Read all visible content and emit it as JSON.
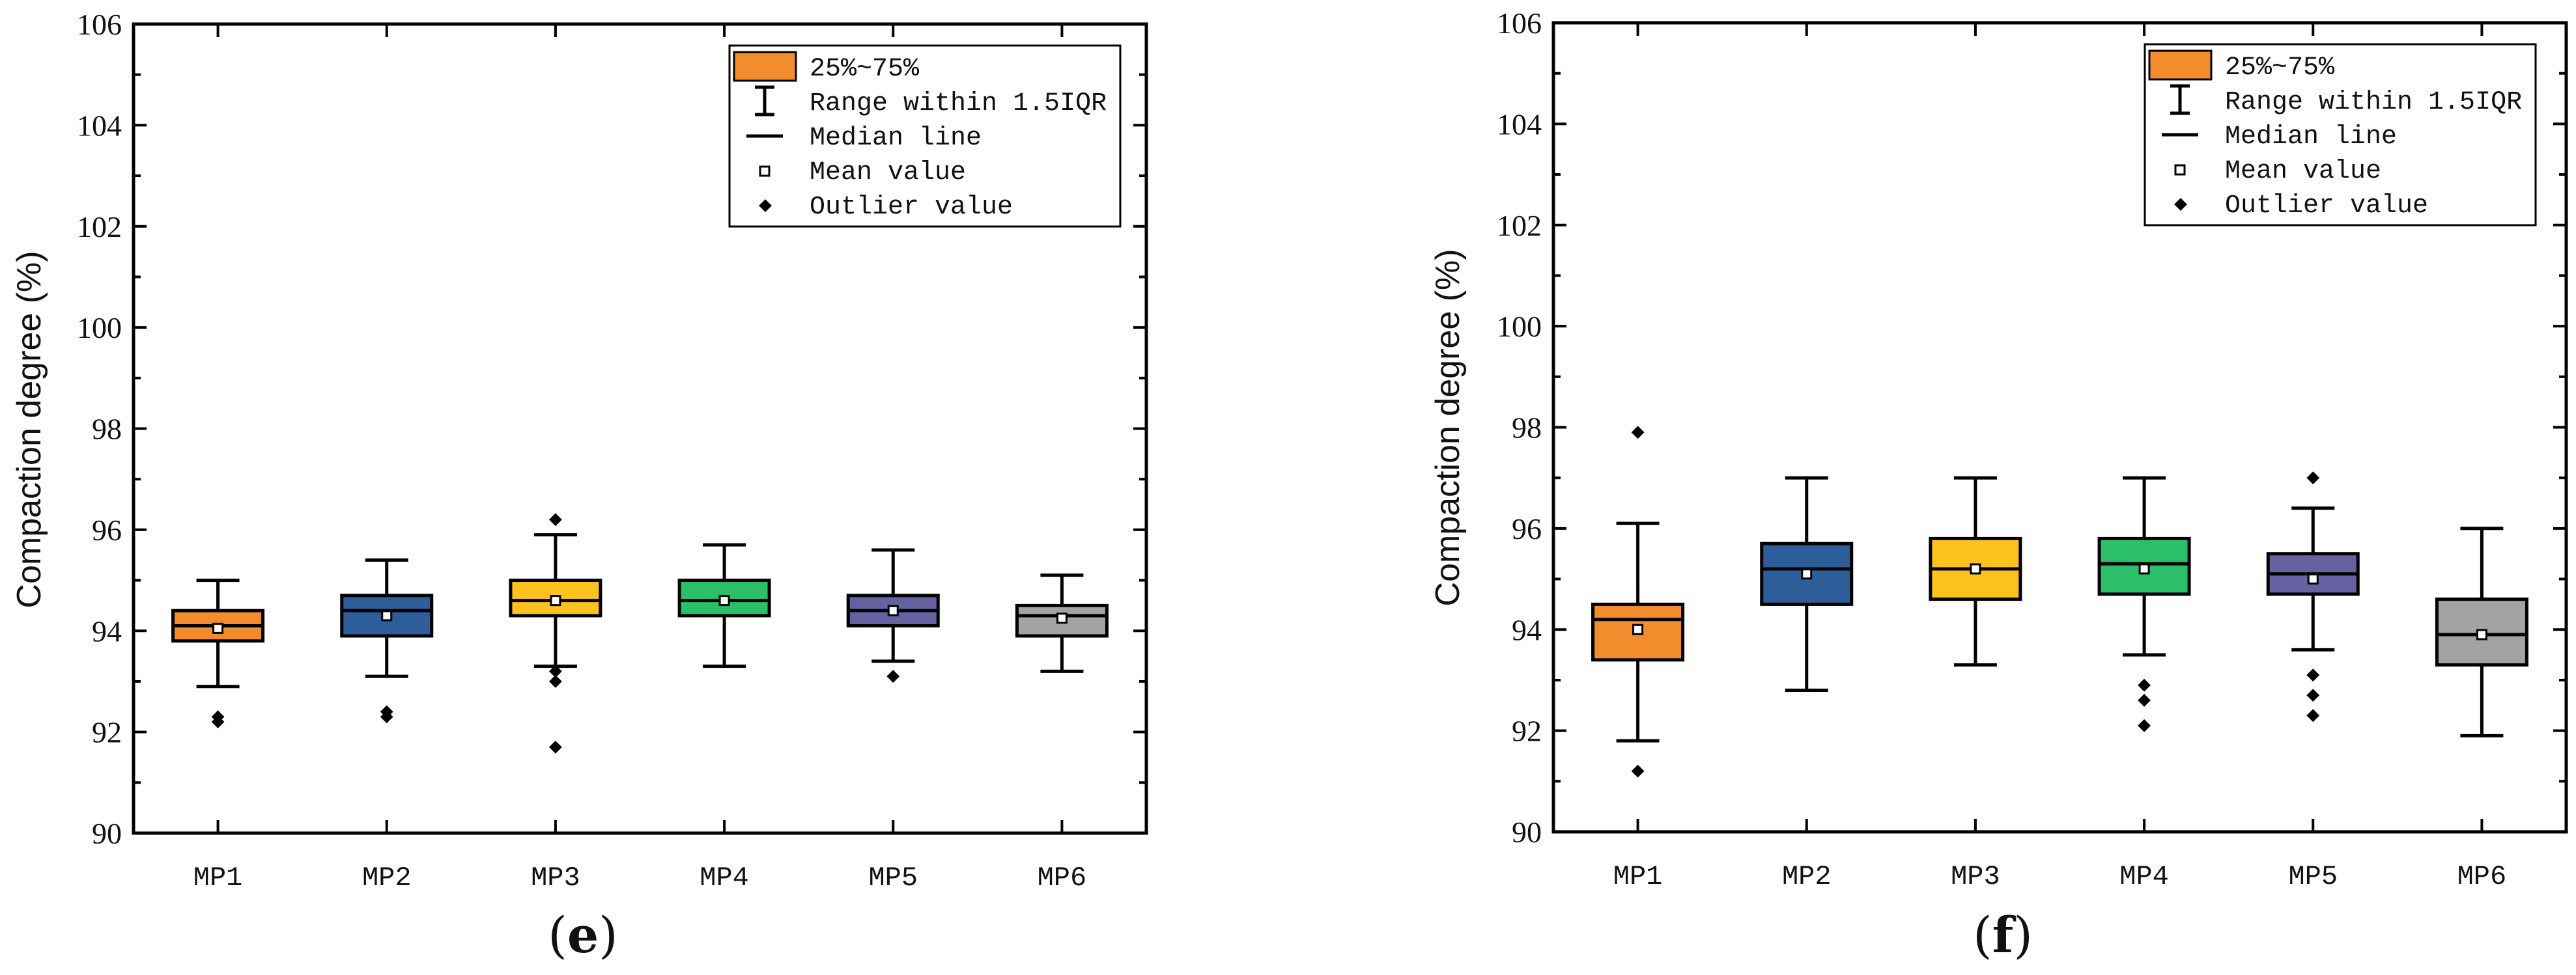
{
  "chart_data": [
    {
      "type": "box",
      "panel": "e",
      "panel_label": "e",
      "ylabel": "Compaction degree (%)",
      "xlabel": "",
      "ylim": [
        90,
        106
      ],
      "yticks": [
        90,
        92,
        94,
        96,
        98,
        100,
        102,
        104,
        106
      ],
      "grid": false,
      "legend_position": "top-right",
      "categories": [
        "MP1",
        "MP2",
        "MP3",
        "MP4",
        "MP5",
        "MP6"
      ],
      "boxes": [
        {
          "name": "MP1",
          "whisker_low": 92.9,
          "q1": 93.8,
          "median": 94.1,
          "mean": 94.05,
          "q3": 94.4,
          "whisker_high": 95.0,
          "color": "#F28C2D",
          "outliers": [
            92.2,
            92.3
          ]
        },
        {
          "name": "MP2",
          "whisker_low": 93.1,
          "q1": 93.9,
          "median": 94.4,
          "mean": 94.3,
          "q3": 94.7,
          "whisker_high": 95.4,
          "color": "#2E5E9A",
          "outliers": [
            92.3,
            92.4
          ]
        },
        {
          "name": "MP3",
          "whisker_low": 93.3,
          "q1": 94.3,
          "median": 94.6,
          "mean": 94.6,
          "q3": 95.0,
          "whisker_high": 95.9,
          "color": "#FDC21E",
          "outliers": [
            96.2,
            93.0,
            93.2,
            91.7
          ]
        },
        {
          "name": "MP4",
          "whisker_low": 93.3,
          "q1": 94.3,
          "median": 94.6,
          "mean": 94.6,
          "q3": 95.0,
          "whisker_high": 95.7,
          "color": "#2CBF6A",
          "outliers": []
        },
        {
          "name": "MP5",
          "whisker_low": 93.4,
          "q1": 94.1,
          "median": 94.4,
          "mean": 94.4,
          "q3": 94.7,
          "whisker_high": 95.6,
          "color": "#6661A0",
          "outliers": [
            93.1
          ]
        },
        {
          "name": "MP6",
          "whisker_low": 93.2,
          "q1": 93.9,
          "median": 94.3,
          "mean": 94.25,
          "q3": 94.5,
          "whisker_high": 95.1,
          "color": "#A3A3A3",
          "outliers": []
        }
      ]
    },
    {
      "type": "box",
      "panel": "f",
      "panel_label": "f",
      "ylabel": "Compaction degree (%)",
      "xlabel": "",
      "ylim": [
        90,
        106
      ],
      "yticks": [
        90,
        92,
        94,
        96,
        98,
        100,
        102,
        104,
        106
      ],
      "grid": false,
      "legend_position": "top-right",
      "categories": [
        "MP1",
        "MP2",
        "MP3",
        "MP4",
        "MP5",
        "MP6"
      ],
      "boxes": [
        {
          "name": "MP1",
          "whisker_low": 91.8,
          "q1": 93.4,
          "median": 94.2,
          "mean": 94.0,
          "q3": 94.5,
          "whisker_high": 96.1,
          "color": "#F28C2D",
          "outliers": [
            97.9,
            91.2
          ]
        },
        {
          "name": "MP2",
          "whisker_low": 92.8,
          "q1": 94.5,
          "median": 95.2,
          "mean": 95.1,
          "q3": 95.7,
          "whisker_high": 97.0,
          "color": "#2E5E9A",
          "outliers": []
        },
        {
          "name": "MP3",
          "whisker_low": 93.3,
          "q1": 94.6,
          "median": 95.2,
          "mean": 95.2,
          "q3": 95.8,
          "whisker_high": 97.0,
          "color": "#FDC21E",
          "outliers": []
        },
        {
          "name": "MP4",
          "whisker_low": 93.5,
          "q1": 94.7,
          "median": 95.3,
          "mean": 95.2,
          "q3": 95.8,
          "whisker_high": 97.0,
          "color": "#2CBF6A",
          "outliers": [
            92.9,
            92.6,
            92.1
          ]
        },
        {
          "name": "MP5",
          "whisker_low": 93.6,
          "q1": 94.7,
          "median": 95.1,
          "mean": 95.0,
          "q3": 95.5,
          "whisker_high": 96.4,
          "color": "#6661A0",
          "outliers": [
            97.0,
            93.1,
            92.7,
            92.3
          ]
        },
        {
          "name": "MP6",
          "whisker_low": 91.9,
          "q1": 93.3,
          "median": 93.9,
          "mean": 93.9,
          "q3": 94.6,
          "whisker_high": 96.0,
          "color": "#A3A3A3",
          "outliers": []
        }
      ]
    }
  ],
  "legend": {
    "items": [
      {
        "key": "box",
        "label": "25%~75%",
        "color": "#F28C2D"
      },
      {
        "key": "whisker",
        "label": "Range within 1.5IQR"
      },
      {
        "key": "median",
        "label": "Median line"
      },
      {
        "key": "mean",
        "label": "Mean value"
      },
      {
        "key": "outlier",
        "label": "Outlier value"
      }
    ]
  }
}
